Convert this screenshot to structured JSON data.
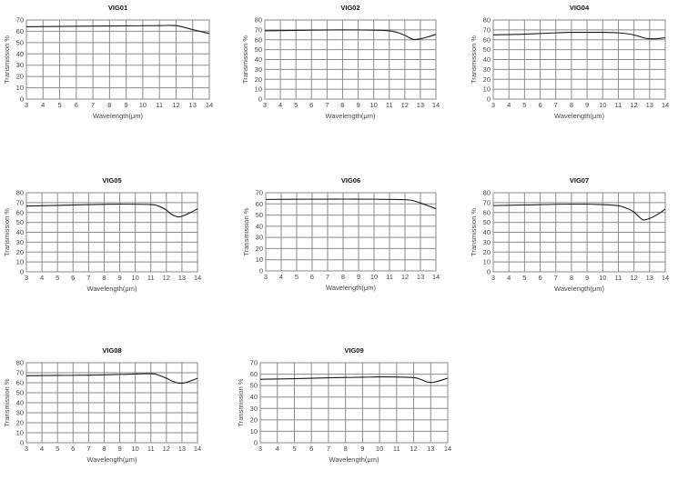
{
  "chart_data": [
    {
      "type": "line",
      "title": "VIG01",
      "xlabel": "Wavelength(μm)",
      "ylabel": "Transmission %",
      "xlim": [
        3,
        14
      ],
      "ylim": [
        0,
        70
      ],
      "xticks": [
        3,
        4,
        5,
        6,
        7,
        8,
        9,
        10,
        11,
        12,
        13,
        14
      ],
      "yticks": [
        0,
        10,
        20,
        30,
        40,
        50,
        60,
        70
      ],
      "grid": true,
      "x": [
        3,
        5,
        7,
        9,
        11,
        12,
        13,
        14
      ],
      "y": [
        64,
        64.3,
        64.6,
        64.8,
        65,
        65,
        61.5,
        58
      ]
    },
    {
      "type": "line",
      "title": "VIG02",
      "xlabel": "Wavelength(μm)",
      "ylabel": "Transmission %",
      "xlim": [
        3,
        14
      ],
      "ylim": [
        0,
        80
      ],
      "xticks": [
        3,
        4,
        5,
        6,
        7,
        8,
        9,
        10,
        11,
        12,
        13,
        14
      ],
      "yticks": [
        0,
        10,
        20,
        30,
        40,
        50,
        60,
        70,
        80
      ],
      "grid": true,
      "x": [
        3,
        5,
        8,
        10,
        11,
        11.5,
        12,
        12.3,
        12.6,
        13,
        13.5,
        14
      ],
      "y": [
        69,
        69.5,
        70,
        69.7,
        69,
        67.5,
        64.5,
        62,
        60.2,
        61,
        63,
        65.5
      ]
    },
    {
      "type": "line",
      "title": "VIG04",
      "xlabel": "Wavelength(μm)",
      "ylabel": "Transmission %",
      "xlim": [
        3,
        14
      ],
      "ylim": [
        0,
        80
      ],
      "xticks": [
        3,
        4,
        5,
        6,
        7,
        8,
        9,
        10,
        11,
        12,
        13,
        14
      ],
      "yticks": [
        0,
        10,
        20,
        30,
        40,
        50,
        60,
        70,
        80
      ],
      "grid": true,
      "x": [
        3,
        5,
        7,
        8,
        10,
        11,
        11.8,
        12.3,
        12.8,
        13.3,
        14
      ],
      "y": [
        65,
        65.7,
        67,
        67.5,
        67.5,
        67,
        65.5,
        63.5,
        61.3,
        61,
        62
      ]
    },
    {
      "type": "line",
      "title": "VIG05",
      "xlabel": "Wavelength(μm)",
      "ylabel": "Transmission %",
      "xlim": [
        3,
        14
      ],
      "ylim": [
        0,
        80
      ],
      "xticks": [
        3,
        4,
        5,
        6,
        7,
        8,
        9,
        10,
        11,
        12,
        13,
        14
      ],
      "yticks": [
        0,
        10,
        20,
        30,
        40,
        50,
        60,
        70,
        80
      ],
      "grid": true,
      "x": [
        3,
        5,
        7,
        9,
        11,
        11.5,
        12,
        12.3,
        12.7,
        13,
        13.5,
        14
      ],
      "y": [
        66.5,
        67.2,
        68,
        68.5,
        68,
        66.5,
        62.5,
        58.5,
        55.7,
        56.2,
        59.5,
        63.8
      ]
    },
    {
      "type": "line",
      "title": "VIG06",
      "xlabel": "Wavelength(μm)",
      "ylabel": "Transmission %",
      "xlim": [
        3,
        14
      ],
      "ylim": [
        0,
        70
      ],
      "xticks": [
        3,
        4,
        5,
        6,
        7,
        8,
        9,
        10,
        11,
        12,
        13,
        14
      ],
      "yticks": [
        0,
        10,
        20,
        30,
        40,
        50,
        60,
        70
      ],
      "grid": true,
      "x": [
        3,
        6,
        8,
        10,
        11,
        12,
        12.5,
        13,
        13.5,
        14
      ],
      "y": [
        64,
        64.2,
        64.3,
        64.2,
        64,
        63.8,
        63,
        60.8,
        58.3,
        55.6
      ]
    },
    {
      "type": "line",
      "title": "VIG07",
      "xlabel": "Wavelength(μm)",
      "ylabel": "Transmission %",
      "xlim": [
        3,
        14
      ],
      "ylim": [
        0,
        80
      ],
      "xticks": [
        3,
        4,
        5,
        6,
        7,
        8,
        9,
        10,
        11,
        12,
        13,
        14
      ],
      "yticks": [
        0,
        10,
        20,
        30,
        40,
        50,
        60,
        70,
        80
      ],
      "grid": true,
      "x": [
        3,
        5,
        8,
        10,
        11,
        11.5,
        12,
        12.3,
        12.6,
        13,
        13.5,
        14
      ],
      "y": [
        67,
        67.6,
        68.5,
        68,
        66.8,
        64.5,
        60.5,
        56,
        52.5,
        54,
        58,
        63.5
      ]
    },
    {
      "type": "line",
      "title": "VIG08",
      "xlabel": "Wavelength(μm)",
      "ylabel": "Transmission %",
      "xlim": [
        3,
        14
      ],
      "ylim": [
        0,
        80
      ],
      "xticks": [
        3,
        4,
        5,
        6,
        7,
        8,
        9,
        10,
        11,
        12,
        13,
        14
      ],
      "yticks": [
        0,
        10,
        20,
        30,
        40,
        50,
        60,
        70,
        80
      ],
      "grid": true,
      "x": [
        3,
        5,
        7,
        9,
        11,
        11.5,
        12,
        12.4,
        12.8,
        13.2,
        14
      ],
      "y": [
        67,
        67.3,
        67.6,
        68.3,
        69,
        67.5,
        64.5,
        61.5,
        59.6,
        60,
        64.3
      ]
    },
    {
      "type": "line",
      "title": "VIG09",
      "xlabel": "Wavelength(μm)",
      "ylabel": "Transmission %",
      "xlim": [
        3,
        14
      ],
      "ylim": [
        0,
        70
      ],
      "xticks": [
        3,
        4,
        5,
        6,
        7,
        8,
        9,
        10,
        11,
        12,
        13,
        14
      ],
      "yticks": [
        0,
        10,
        20,
        30,
        40,
        50,
        60,
        70
      ],
      "grid": true,
      "x": [
        3,
        5,
        7,
        9,
        10,
        11,
        12,
        12.4,
        12.8,
        13.2,
        14
      ],
      "y": [
        55.5,
        56,
        56.8,
        57.3,
        57.6,
        57.5,
        57,
        55.5,
        53.2,
        53,
        56.5
      ]
    }
  ],
  "colors": {
    "line": "#1a1a1a",
    "grid": "#8a8a8a",
    "text": "#444444"
  }
}
